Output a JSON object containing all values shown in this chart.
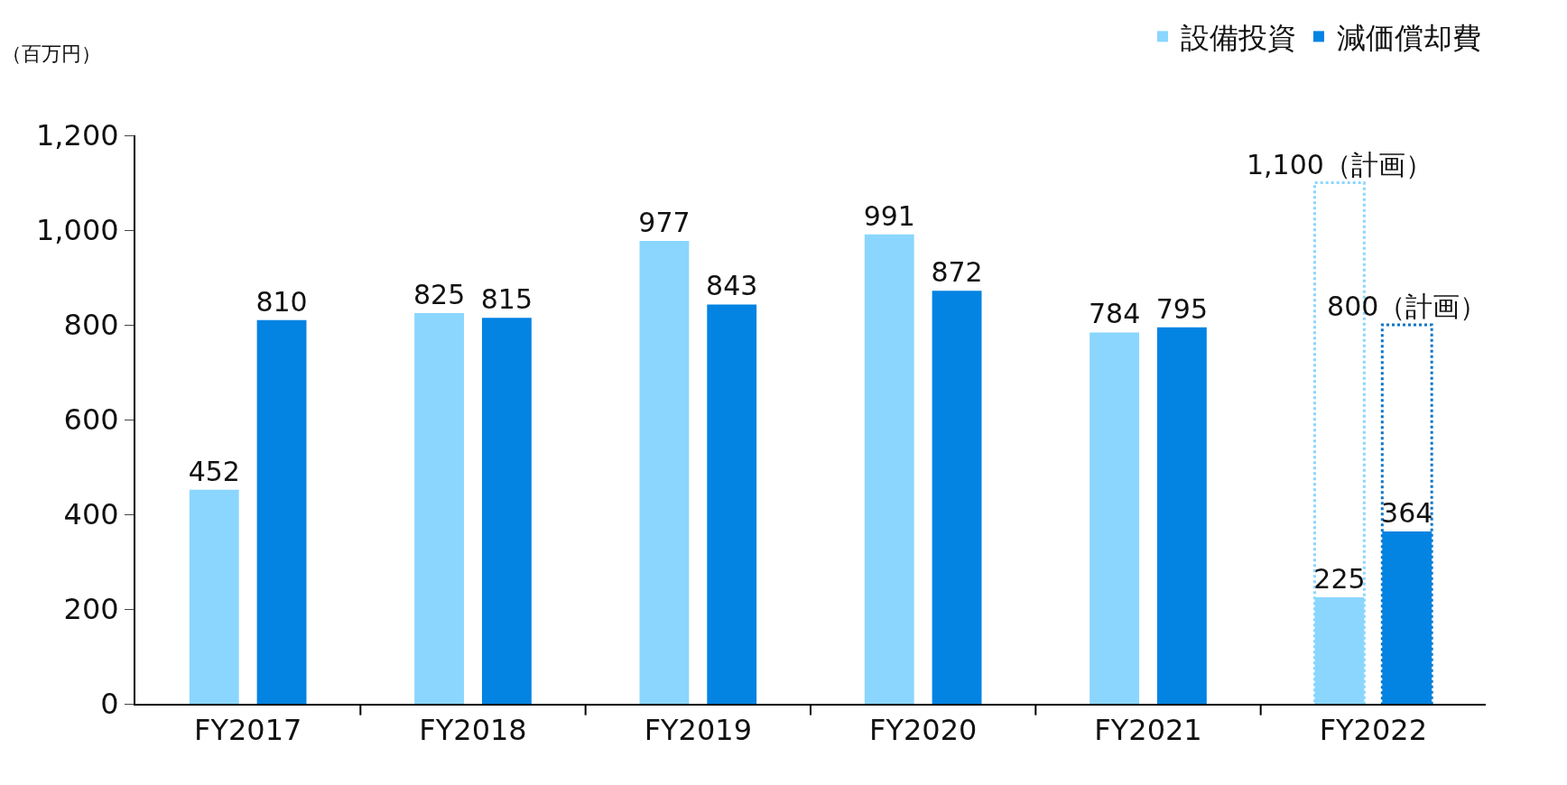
{
  "chart_data": {
    "type": "bar",
    "ylabel": "（百万円）",
    "categories": [
      "FY2017",
      "FY2018",
      "FY2019",
      "FY2020",
      "FY2021",
      "FY2022"
    ],
    "series": [
      {
        "name": "設備投資",
        "color": "#8ad6fe",
        "values": [
          452,
          825,
          977,
          991,
          784,
          225
        ],
        "value_labels": [
          "452",
          "825",
          "977",
          "991",
          "784",
          "225"
        ]
      },
      {
        "name": "減価償却費",
        "color": "#0383e2",
        "values": [
          810,
          815,
          843,
          872,
          795,
          364
        ],
        "value_labels": [
          "810",
          "815",
          "843",
          "872",
          "795",
          "364"
        ]
      },
      {
        "color": "#8ad6fe",
        "line_style": "dotted",
        "values": [
          null,
          null,
          null,
          null,
          null,
          1100
        ],
        "value_labels": [
          null,
          null,
          null,
          null,
          null,
          "1,100（計画）"
        ]
      },
      {
        "color": "#0a74c8",
        "line_style": "dotted",
        "values": [
          null,
          null,
          null,
          null,
          null,
          800
        ],
        "value_labels": [
          null,
          null,
          null,
          null,
          null,
          "800（計画）"
        ]
      }
    ],
    "ylim": [
      0,
      1200
    ],
    "yticks": [
      0,
      200,
      400,
      600,
      800,
      {
        "value": 1000,
        "label": "1,000"
      },
      {
        "value": 1200,
        "label": "1,200"
      }
    ],
    "grid": false,
    "legend": "top right"
  }
}
